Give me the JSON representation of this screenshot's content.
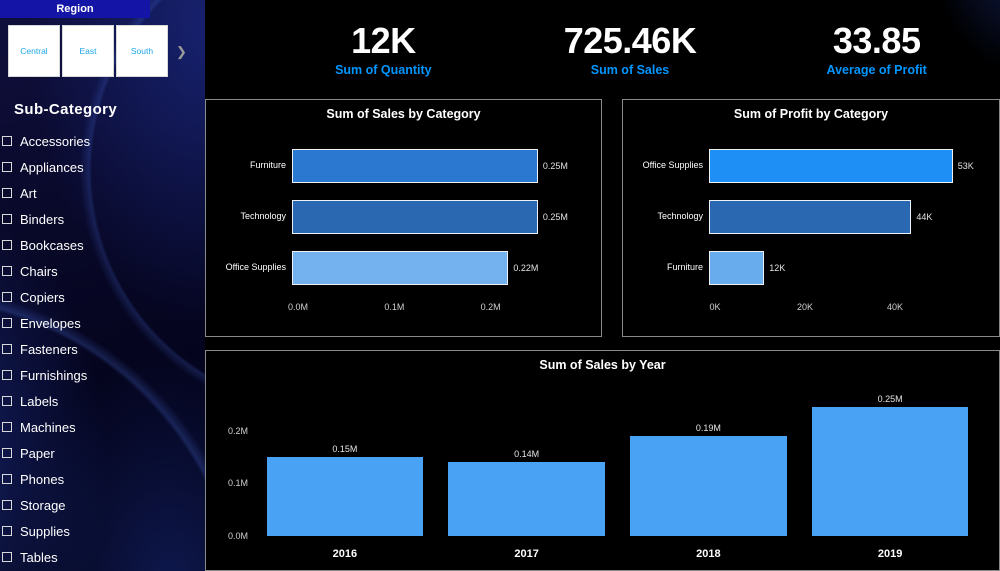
{
  "sidebar": {
    "region": {
      "title": "Region",
      "buttons": [
        "Central",
        "East",
        "South"
      ],
      "scroll_icon": "❯"
    },
    "subcategory": {
      "title": "Sub-Category",
      "items": [
        "Accessories",
        "Appliances",
        "Art",
        "Binders",
        "Bookcases",
        "Chairs",
        "Copiers",
        "Envelopes",
        "Fasteners",
        "Furnishings",
        "Labels",
        "Machines",
        "Paper",
        "Phones",
        "Storage",
        "Supplies",
        "Tables"
      ]
    }
  },
  "kpis": [
    {
      "value": "12K",
      "label": "Sum of Quantity"
    },
    {
      "value": "725.46K",
      "label": "Sum of Sales"
    },
    {
      "value": "33.85",
      "label": "Average of Profit"
    }
  ],
  "colors": {
    "kpi_label": "#0096ff",
    "panel_border": "#8a8a8a",
    "background": "#000000"
  },
  "chart_data": [
    {
      "type": "bar",
      "orientation": "horizontal",
      "title": "Sum of Sales by Category",
      "categories": [
        "Furniture",
        "Technology",
        "Office Supplies"
      ],
      "values": [
        0.25,
        0.25,
        0.22
      ],
      "value_labels": [
        "0.25M",
        "0.25M",
        "0.22M"
      ],
      "xlim": [
        0,
        0.3
      ],
      "xticks": [
        {
          "label": "0.0M",
          "value": 0
        },
        {
          "label": "0.1M",
          "value": 0.1
        },
        {
          "label": "0.2M",
          "value": 0.2
        }
      ],
      "bar_colors": [
        "#2a78cf",
        "#2a68b2",
        "#74b2ef"
      ],
      "xlabel": "",
      "ylabel": "",
      "grid": false,
      "legend": false
    },
    {
      "type": "bar",
      "orientation": "horizontal",
      "title": "Sum of Profit by Category",
      "categories": [
        "Office Supplies",
        "Technology",
        "Furniture"
      ],
      "values": [
        53,
        44,
        12
      ],
      "value_labels": [
        "53K",
        "44K",
        "12K"
      ],
      "xlim": [
        0,
        60
      ],
      "xticks": [
        {
          "label": "0K",
          "value": 0
        },
        {
          "label": "20K",
          "value": 20
        },
        {
          "label": "40K",
          "value": 40
        }
      ],
      "bar_colors": [
        "#1e8ff5",
        "#2a68b2",
        "#68aced"
      ],
      "xlabel": "",
      "ylabel": "",
      "grid": false,
      "legend": false
    },
    {
      "type": "bar",
      "orientation": "vertical",
      "title": "Sum of Sales by Year",
      "categories": [
        "2016",
        "2017",
        "2018",
        "2019"
      ],
      "values": [
        0.15,
        0.14,
        0.19,
        0.25
      ],
      "value_labels": [
        "0.15M",
        "0.14M",
        "0.19M",
        "0.25M"
      ],
      "ylim": [
        0,
        0.27
      ],
      "yticks": [
        {
          "label": "0.0M",
          "value": 0
        },
        {
          "label": "0.1M",
          "value": 0.1
        },
        {
          "label": "0.2M",
          "value": 0.2
        }
      ],
      "bar_color": "#4aa2f5",
      "xlabel": "",
      "ylabel": "",
      "grid": false,
      "legend": false
    }
  ]
}
